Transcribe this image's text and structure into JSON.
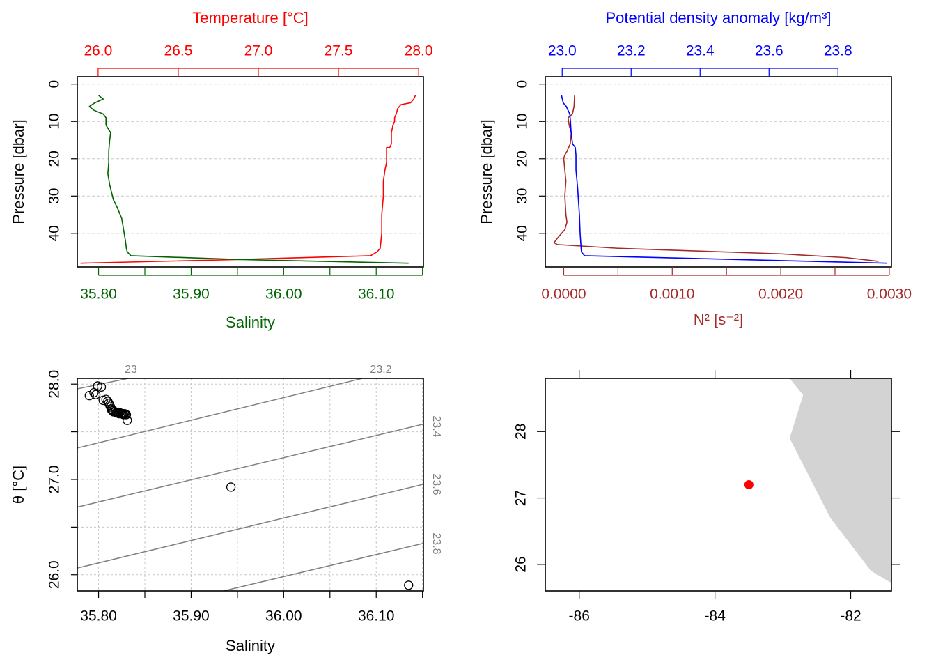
{
  "colors": {
    "temperature": "#ff0000",
    "salinity": "#006400",
    "density": "#0000ff",
    "n2": "#a52a2a",
    "isopycnal": "#808080",
    "grid": "#c8c8c8",
    "land": "#d3d3d3",
    "station": "#ff0000",
    "frame": "#000000"
  },
  "chart_data": [
    {
      "type": "line",
      "panel": "profile-temperature-salinity",
      "grid": true,
      "y_axis": {
        "label": "Pressure [dbar]",
        "range": [
          49,
          -2
        ],
        "reversed": true,
        "ticks": [
          "0",
          "10",
          "20",
          "30",
          "40"
        ]
      },
      "top_axis": {
        "label": "Temperature [°C]",
        "range": [
          25.87,
          28.03
        ],
        "ticks": [
          "26.0",
          "26.5",
          "27.0",
          "27.5",
          "28.0"
        ]
      },
      "bottom_axis": {
        "label": "Salinity",
        "range": [
          35.777,
          36.151
        ],
        "ticks": [
          "35.80",
          "35.90",
          "36.00",
          "36.10"
        ]
      },
      "series": [
        {
          "name": "Temperature",
          "axis": "top",
          "points": [
            [
              27.98,
              3
            ],
            [
              27.97,
              4
            ],
            [
              27.95,
              5
            ],
            [
              27.89,
              5.5
            ],
            [
              27.87,
              6.5
            ],
            [
              27.86,
              8
            ],
            [
              27.85,
              9
            ],
            [
              27.85,
              10
            ],
            [
              27.84,
              11
            ],
            [
              27.83,
              13
            ],
            [
              27.83,
              16
            ],
            [
              27.82,
              17
            ],
            [
              27.8,
              17
            ],
            [
              27.8,
              19
            ],
            [
              27.8,
              21
            ],
            [
              27.79,
              23
            ],
            [
              27.78,
              26
            ],
            [
              27.78,
              30
            ],
            [
              27.77,
              35
            ],
            [
              27.77,
              40
            ],
            [
              27.76,
              44
            ],
            [
              27.74,
              45
            ],
            [
              27.7,
              46
            ],
            [
              26.88,
              47
            ],
            [
              25.89,
              48
            ]
          ]
        },
        {
          "name": "Salinity",
          "axis": "bottom",
          "points": [
            [
              35.8,
              3
            ],
            [
              35.805,
              4
            ],
            [
              35.796,
              5
            ],
            [
              35.79,
              6
            ],
            [
              35.795,
              7
            ],
            [
              35.805,
              8
            ],
            [
              35.808,
              9
            ],
            [
              35.808,
              11
            ],
            [
              35.813,
              13
            ],
            [
              35.812,
              15
            ],
            [
              35.811,
              18
            ],
            [
              35.811,
              21
            ],
            [
              35.81,
              24
            ],
            [
              35.812,
              27
            ],
            [
              35.816,
              31
            ],
            [
              35.82,
              33
            ],
            [
              35.825,
              36
            ],
            [
              35.827,
              39
            ],
            [
              35.829,
              42
            ],
            [
              35.83,
              44
            ],
            [
              35.831,
              45
            ],
            [
              35.835,
              46
            ],
            [
              35.951,
              47
            ],
            [
              36.135,
              48
            ]
          ]
        }
      ]
    },
    {
      "type": "line",
      "panel": "profile-density-n2",
      "grid": true,
      "y_axis": {
        "label": "Pressure [dbar]",
        "range": [
          49,
          -2
        ],
        "reversed": true,
        "ticks": [
          "0",
          "10",
          "20",
          "30",
          "40"
        ]
      },
      "top_axis": {
        "label": "Potential density anomaly [kg/m³]",
        "range": [
          22.951,
          23.955
        ],
        "ticks": [
          "23.0",
          "23.2",
          "23.4",
          "23.6",
          "23.8"
        ]
      },
      "bottom_axis": {
        "label": "N² [s⁻²]",
        "range": [
          -0.00017,
          0.00302
        ],
        "ticks": [
          "0.0000",
          "0.0010",
          "0.0020",
          "0.0030"
        ]
      },
      "series": [
        {
          "name": "Potential density anomaly",
          "axis": "top",
          "points": [
            [
              22.998,
              3
            ],
            [
              23.003,
              5
            ],
            [
              23.012,
              6
            ],
            [
              23.017,
              7
            ],
            [
              23.022,
              8
            ],
            [
              23.024,
              10
            ],
            [
              23.026,
              13
            ],
            [
              23.03,
              16
            ],
            [
              23.038,
              17
            ],
            [
              23.04,
              19
            ],
            [
              23.04,
              23
            ],
            [
              23.042,
              25
            ],
            [
              23.045,
              28
            ],
            [
              23.047,
              31
            ],
            [
              23.05,
              35
            ],
            [
              23.052,
              40
            ],
            [
              23.055,
              44
            ],
            [
              23.056,
              45
            ],
            [
              23.065,
              46
            ],
            [
              23.941,
              48
            ]
          ]
        },
        {
          "name": "N²",
          "axis": "bottom",
          "points": [
            [
              0.0001,
              3
            ],
            [
              9.5e-05,
              6
            ],
            [
              8e-05,
              8
            ],
            [
              4e-05,
              9
            ],
            [
              5e-05,
              11
            ],
            [
              7e-05,
              13
            ],
            [
              6e-05,
              16
            ],
            [
              3e-05,
              18
            ],
            [
              1e-05,
              19
            ],
            [
              0.0,
              20
            ],
            [
              1e-05,
              23
            ],
            [
              2e-05,
              26
            ],
            [
              1e-05,
              30
            ],
            [
              2e-05,
              35
            ],
            [
              3e-05,
              37
            ],
            [
              1e-05,
              39
            ],
            [
              -5e-05,
              41
            ],
            [
              -9e-05,
              42.5
            ],
            [
              -6e-05,
              43
            ],
            [
              0.0005,
              44
            ],
            [
              0.001,
              44.5
            ],
            [
              0.002,
              45.5
            ],
            [
              0.0026,
              46.5
            ],
            [
              0.0029,
              47.5
            ]
          ]
        }
      ]
    },
    {
      "type": "scatter",
      "panel": "ts-diagram",
      "grid": true,
      "xlabel": "Salinity",
      "ylabel": "θ [°C]",
      "xlim": [
        35.777,
        36.151
      ],
      "ylim": [
        25.83,
        28.06
      ],
      "xticks": [
        "35.80",
        "35.90",
        "36.00",
        "36.10"
      ],
      "yticks": [
        "26.0",
        "27.0",
        "28.0"
      ],
      "points": [
        [
          35.799,
          27.98
        ],
        [
          35.803,
          27.97
        ],
        [
          35.795,
          27.91
        ],
        [
          35.79,
          27.88
        ],
        [
          35.797,
          27.89
        ],
        [
          35.805,
          27.83
        ],
        [
          35.808,
          27.84
        ],
        [
          35.81,
          27.82
        ],
        [
          35.811,
          27.8
        ],
        [
          35.812,
          27.78
        ],
        [
          35.813,
          27.76
        ],
        [
          35.814,
          27.74
        ],
        [
          35.814,
          27.73
        ],
        [
          35.815,
          27.72
        ],
        [
          35.816,
          27.71
        ],
        [
          35.818,
          27.71
        ],
        [
          35.819,
          27.7
        ],
        [
          35.82,
          27.7
        ],
        [
          35.821,
          27.7
        ],
        [
          35.822,
          27.69
        ],
        [
          35.823,
          27.7
        ],
        [
          35.824,
          27.69
        ],
        [
          35.825,
          27.69
        ],
        [
          35.826,
          27.69
        ],
        [
          35.827,
          27.68
        ],
        [
          35.828,
          27.69
        ],
        [
          35.829,
          27.68
        ],
        [
          35.83,
          27.68
        ],
        [
          35.831,
          27.62
        ],
        [
          35.943,
          26.92
        ],
        [
          36.135,
          25.89
        ]
      ],
      "isopycnals": [
        {
          "label": "23",
          "points": [
            [
              35.777,
              27.95
            ],
            [
              35.832,
              28.06
            ]
          ]
        },
        {
          "label": "23.2",
          "points": [
            [
              35.777,
              27.33
            ],
            [
              36.085,
              28.06
            ]
          ]
        },
        {
          "label": "23.4",
          "points": [
            [
              35.777,
              26.71
            ],
            [
              36.151,
              27.58
            ]
          ]
        },
        {
          "label": "23.6",
          "points": [
            [
              35.777,
              26.07
            ],
            [
              36.151,
              26.95
            ]
          ]
        },
        {
          "label": "23.8",
          "points": [
            [
              35.935,
              25.83
            ],
            [
              36.151,
              26.33
            ]
          ]
        }
      ]
    },
    {
      "type": "map",
      "panel": "station-map",
      "xlim": [
        -86.5,
        -81.4
      ],
      "ylim": [
        25.6,
        28.8
      ],
      "xticks": [
        "-86",
        "-84",
        "-82"
      ],
      "yticks": [
        "26",
        "27",
        "28"
      ],
      "station": [
        -83.5,
        27.2
      ],
      "land": [
        [
          -82.9,
          28.8
        ],
        [
          -82.7,
          28.55
        ],
        [
          -82.9,
          27.9
        ],
        [
          -82.7,
          27.5
        ],
        [
          -82.3,
          26.7
        ],
        [
          -81.7,
          25.9
        ],
        [
          -81.2,
          25.6
        ],
        [
          -80.9,
          25.6
        ],
        [
          -80.9,
          28.8
        ]
      ]
    }
  ]
}
